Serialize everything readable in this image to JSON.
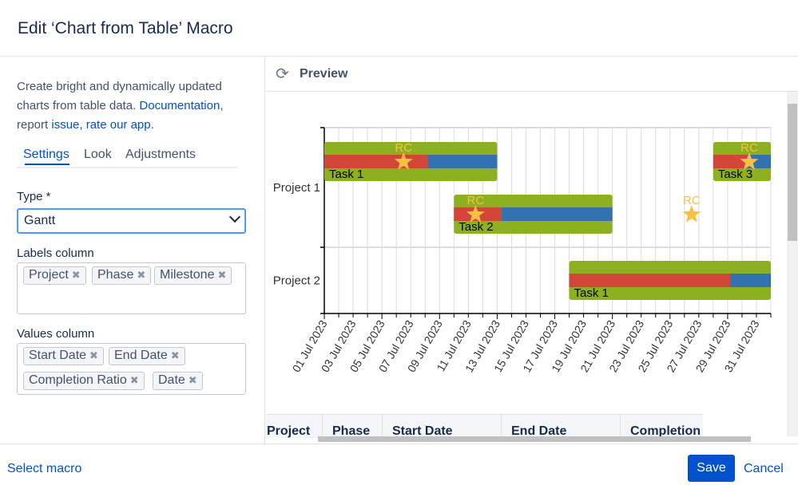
{
  "dialog": {
    "title": "Edit ‘Chart from Table’ Macro"
  },
  "intro": {
    "text1": "Create bright and dynamically updated charts from table data. ",
    "documentation": "Documentation",
    "comma": ",",
    "text2": " report ",
    "issue": "issue,",
    "rate": "rate our app",
    "period": "."
  },
  "tabs": [
    {
      "label": "Settings",
      "active": true
    },
    {
      "label": "Look"
    },
    {
      "label": "Adjustments"
    }
  ],
  "type": {
    "label": "Type *",
    "value": "Gantt"
  },
  "labels_column": {
    "label": "Labels column",
    "chips": [
      "Project",
      "Phase",
      "Milestone"
    ]
  },
  "values_column": {
    "label": "Values column",
    "chips": [
      "Start Date",
      "End Date",
      "Completion Ratio",
      "Date"
    ]
  },
  "preview": {
    "label": "Preview",
    "icon": "refresh-icon"
  },
  "table": {
    "headers": [
      "Project",
      "Phase",
      "Start Date",
      "End Date",
      "Completion"
    ]
  },
  "footer": {
    "select_macro": "Select macro",
    "save": "Save",
    "cancel": "Cancel"
  },
  "chart_data": {
    "type": "gantt",
    "x_range": [
      "2023-07-01",
      "2023-08-01"
    ],
    "x_tick_labels": [
      "01 Jul 2023",
      "03 Jul 2023",
      "05 Jul 2023",
      "07 Jul 2023",
      "09 Jul 2023",
      "11 Jul 2023",
      "13 Jul 2023",
      "15 Jul 2023",
      "17 Jul 2023",
      "19 Jul 2023",
      "21 Jul 2023",
      "23 Jul 2023",
      "25 Jul 2023",
      "27 Jul 2023",
      "29 Jul 2023",
      "31 Jul 2023"
    ],
    "categories": [
      "Project 1",
      "Project 2"
    ],
    "grid": true,
    "colors": {
      "bar": "#8db021",
      "done": "#d2463a",
      "remaining": "#3272b0",
      "milestone": "#f5c142"
    },
    "tasks": [
      {
        "project": "Project 1",
        "lane": 0,
        "label": "Task 1",
        "start": "2023-07-01",
        "end": "2023-07-13",
        "completion": 0.6
      },
      {
        "project": "Project 1",
        "lane": 1,
        "label": "Task 2",
        "start": "2023-07-10",
        "end": "2023-07-21",
        "completion": 0.3
      },
      {
        "project": "Project 1",
        "lane": 0,
        "label": "Task 3",
        "start": "2023-07-28",
        "end": "2023-08-01",
        "completion": 0.6
      },
      {
        "project": "Project 2",
        "lane": 0,
        "label": "Task 1",
        "start": "2023-07-18",
        "end": "2023-08-01",
        "completion": 0.8
      }
    ],
    "milestones": [
      {
        "project": "Project 1",
        "lane": 0,
        "label": "RC",
        "date": "2023-07-06"
      },
      {
        "project": "Project 1",
        "lane": 1,
        "label": "RC",
        "date": "2023-07-11"
      },
      {
        "project": "Project 1",
        "lane": 1,
        "label": "RC",
        "date": "2023-07-26"
      },
      {
        "project": "Project 1",
        "lane": 0,
        "label": "RC",
        "date": "2023-07-30"
      }
    ]
  }
}
